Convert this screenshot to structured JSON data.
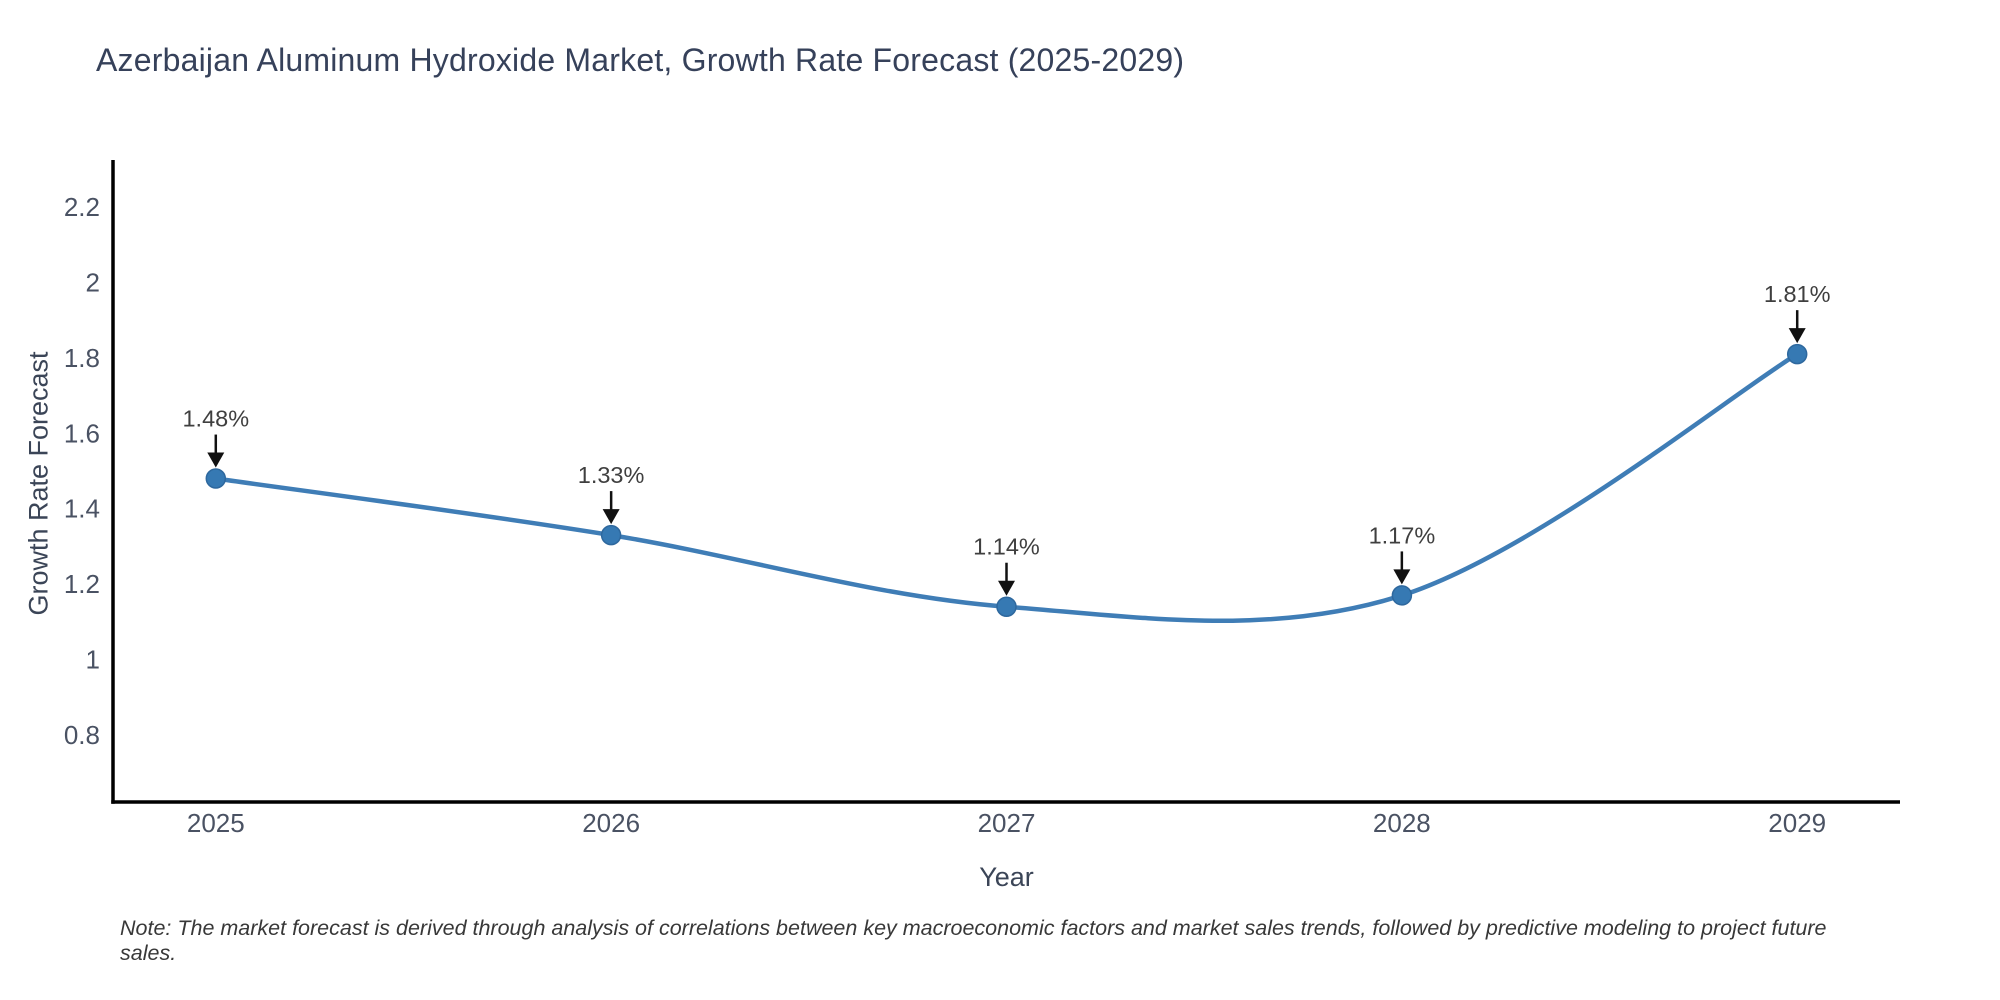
{
  "title": {
    "text": "Azerbaijan Aluminum Hydroxide Market, Growth Rate Forecast (2025-2029)"
  },
  "note": {
    "text": "Note: The market forecast is derived through analysis of correlations between key macroeconomic factors and market sales trends, followed by predictive modeling to project future sales."
  },
  "chart_data": {
    "type": "line",
    "title": "Azerbaijan Aluminum Hydroxide Market, Growth Rate Forecast (2025-2029)",
    "x": [
      2025,
      2026,
      2027,
      2028,
      2029
    ],
    "series": [
      {
        "name": "Growth Rate Forecast",
        "values": [
          1.48,
          1.33,
          1.14,
          1.17,
          1.81
        ]
      }
    ],
    "point_labels": [
      "1.48%",
      "1.33%",
      "1.14%",
      "1.17%",
      "1.81%"
    ],
    "xlabel": "Year",
    "ylabel": "Growth Rate Forecast",
    "xlim": [
      2024.74,
      2029.26
    ],
    "ylim": [
      0.622,
      2.325
    ],
    "xticks": {
      "values": [
        2025,
        2026,
        2027,
        2028,
        2029
      ],
      "labels": [
        "2025",
        "2026",
        "2027",
        "2028",
        "2029"
      ]
    },
    "yticks": {
      "values": [
        0.8,
        1.0,
        1.2,
        1.4,
        1.6,
        1.8,
        2.0,
        2.2
      ],
      "labels": [
        "0.8",
        "1",
        "1.2",
        "1.4",
        "1.6",
        "1.8",
        "2",
        "2.2"
      ]
    },
    "grid": false,
    "legend": false,
    "line_shape": "spline",
    "colors": {
      "line": "#3f7db6",
      "marker": "#3679b3",
      "marker_edge": "#2e689e",
      "arrow": "#111111",
      "axis": "#000000",
      "tick_label": "#4a5263",
      "axis_title": "#3b4557",
      "annotation": "#3f3f3f",
      "title": "#36415a",
      "note": "#383838"
    }
  }
}
